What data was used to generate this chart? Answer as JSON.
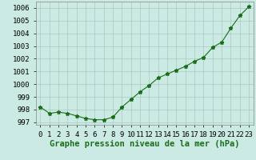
{
  "x": [
    0,
    1,
    2,
    3,
    4,
    5,
    6,
    7,
    8,
    9,
    10,
    11,
    12,
    13,
    14,
    15,
    16,
    17,
    18,
    19,
    20,
    21,
    22,
    23
  ],
  "y": [
    998.2,
    997.7,
    997.8,
    997.7,
    997.5,
    997.3,
    997.2,
    997.2,
    997.4,
    998.2,
    998.8,
    999.4,
    999.9,
    1000.5,
    1000.8,
    1001.1,
    1001.4,
    1001.8,
    1002.1,
    1002.9,
    1003.3,
    1004.4,
    1005.4,
    1006.1
  ],
  "line_color": "#1a6e1a",
  "marker": "*",
  "background_color": "#cceae4",
  "grid_color": "#aac8c0",
  "xlabel": "Graphe pression niveau de la mer (hPa)",
  "ylim": [
    996.8,
    1006.5
  ],
  "yticks": [
    997,
    998,
    999,
    1000,
    1001,
    1002,
    1003,
    1004,
    1005,
    1006
  ],
  "xlim": [
    -0.5,
    23.5
  ],
  "tick_fontsize": 6.5,
  "label_fontsize": 7.5
}
